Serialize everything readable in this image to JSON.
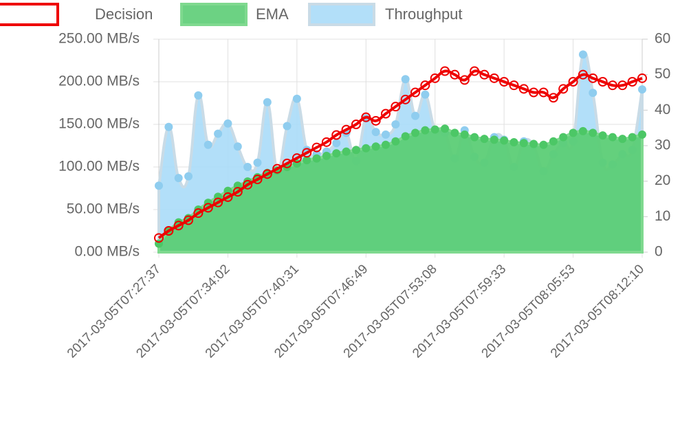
{
  "chart_data": {
    "type": "area",
    "categories": [
      "2017-03-05T07:27:37",
      null,
      null,
      null,
      null,
      null,
      null,
      "2017-03-05T07:34:02",
      null,
      null,
      null,
      null,
      null,
      null,
      "2017-03-05T07:40:31",
      null,
      null,
      null,
      null,
      null,
      null,
      "2017-03-05T07:46:49",
      null,
      null,
      null,
      null,
      null,
      null,
      "2017-03-05T07:53:08",
      null,
      null,
      null,
      null,
      null,
      null,
      "2017-03-05T07:59:33",
      null,
      null,
      null,
      null,
      null,
      null,
      "2017-03-05T08:05:53",
      null,
      null,
      null,
      null,
      null,
      null,
      "2017-03-05T08:12:10"
    ],
    "series": [
      {
        "name": "Decision",
        "color": "#ee0000",
        "axis": "y2",
        "fill": false,
        "values": [
          4,
          6,
          7.5,
          9,
          11,
          12.5,
          14,
          15.5,
          17,
          19,
          20.5,
          22,
          23.5,
          25,
          26.5,
          28,
          29.5,
          31,
          33,
          34.5,
          36,
          38,
          37,
          39,
          41,
          43,
          45,
          47,
          49,
          51,
          50,
          48.5,
          51,
          50,
          49,
          48,
          47,
          46,
          45,
          45,
          43.5,
          46,
          48,
          50,
          49,
          48,
          47,
          47,
          48,
          49
        ]
      },
      {
        "name": "EMA",
        "color": "#5ccd76",
        "fill": true,
        "values": [
          10,
          25,
          35,
          40,
          50,
          58,
          65,
          72,
          78,
          83,
          88,
          93,
          96,
          100,
          104,
          108,
          110,
          113,
          116,
          118,
          120,
          122,
          124,
          126,
          130,
          136,
          140,
          143,
          144,
          145,
          140,
          138,
          135,
          133,
          132,
          131,
          129,
          128,
          127,
          126,
          130,
          135,
          140,
          142,
          140,
          137,
          135,
          133,
          135,
          138
        ]
      },
      {
        "name": "Throughput",
        "color": "#aadcf8",
        "fill": true,
        "values": [
          78,
          147,
          87,
          89,
          184,
          126,
          139,
          151,
          124,
          100,
          105,
          176,
          96,
          148,
          180,
          120,
          115,
          118,
          128,
          140,
          107,
          157,
          141,
          138,
          150,
          203,
          160,
          185,
          143,
          140,
          110,
          143,
          112,
          105,
          135,
          132,
          100,
          130,
          125,
          95,
          115,
          128,
          130,
          232,
          187,
          105,
          103,
          115,
          120,
          191
        ]
      }
    ],
    "ylim": [
      0,
      250
    ],
    "yticks": [
      {
        "value": 0,
        "label": "0.00 MB/s"
      },
      {
        "value": 50,
        "label": "50.00 MB/s"
      },
      {
        "value": 100,
        "label": "100.00 MB/s"
      },
      {
        "value": 150,
        "label": "150.00 MB/s"
      },
      {
        "value": 200,
        "label": "200.00 MB/s"
      },
      {
        "value": 250,
        "label": "250.00 MB/s"
      }
    ],
    "y2lim": [
      0,
      60
    ],
    "y2ticks": [
      0,
      10,
      20,
      30,
      40,
      50,
      60
    ],
    "grid": true,
    "legend": "top"
  }
}
